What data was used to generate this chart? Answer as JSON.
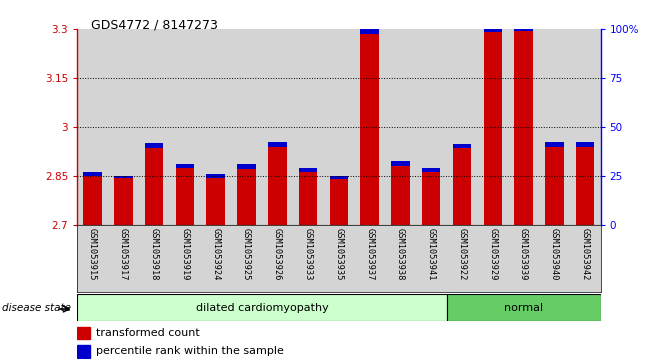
{
  "title": "GDS4772 / 8147273",
  "samples": [
    "GSM1053915",
    "GSM1053917",
    "GSM1053918",
    "GSM1053919",
    "GSM1053924",
    "GSM1053925",
    "GSM1053926",
    "GSM1053933",
    "GSM1053935",
    "GSM1053937",
    "GSM1053938",
    "GSM1053941",
    "GSM1053922",
    "GSM1053929",
    "GSM1053939",
    "GSM1053940",
    "GSM1053942"
  ],
  "red_values": [
    2.85,
    2.843,
    2.935,
    2.875,
    2.845,
    2.872,
    2.94,
    2.863,
    2.84,
    3.285,
    2.882,
    2.862,
    2.935,
    3.29,
    3.293,
    2.94,
    2.94
  ],
  "blue_values": [
    0.012,
    0.008,
    0.015,
    0.012,
    0.012,
    0.014,
    0.015,
    0.012,
    0.011,
    0.022,
    0.013,
    0.013,
    0.013,
    0.02,
    0.022,
    0.013,
    0.013
  ],
  "disease_state": [
    "dilated",
    "dilated",
    "dilated",
    "dilated",
    "dilated",
    "dilated",
    "dilated",
    "dilated",
    "dilated",
    "dilated",
    "dilated",
    "dilated",
    "normal",
    "normal",
    "normal",
    "normal",
    "normal"
  ],
  "ymin": 2.7,
  "ymax": 3.3,
  "yticks": [
    2.7,
    2.85,
    3.0,
    3.15,
    3.3
  ],
  "ytick_labels": [
    "2.7",
    "2.85",
    "3",
    "3.15",
    "3.3"
  ],
  "right_yticks": [
    0,
    25,
    50,
    75,
    100
  ],
  "right_ytick_labels": [
    "0",
    "25",
    "50",
    "75",
    "100%"
  ],
  "grid_lines": [
    2.85,
    3.0,
    3.15
  ],
  "bar_width": 0.6,
  "red_color": "#cc0000",
  "blue_color": "#0000cc",
  "dilated_color": "#ccffcc",
  "normal_color": "#66cc66",
  "col_bg_color": "#d4d4d4",
  "legend_red": "transformed count",
  "legend_blue": "percentile rank within the sample",
  "disease_label": "disease state",
  "dilated_label": "dilated cardiomyopathy",
  "normal_label": "normal"
}
